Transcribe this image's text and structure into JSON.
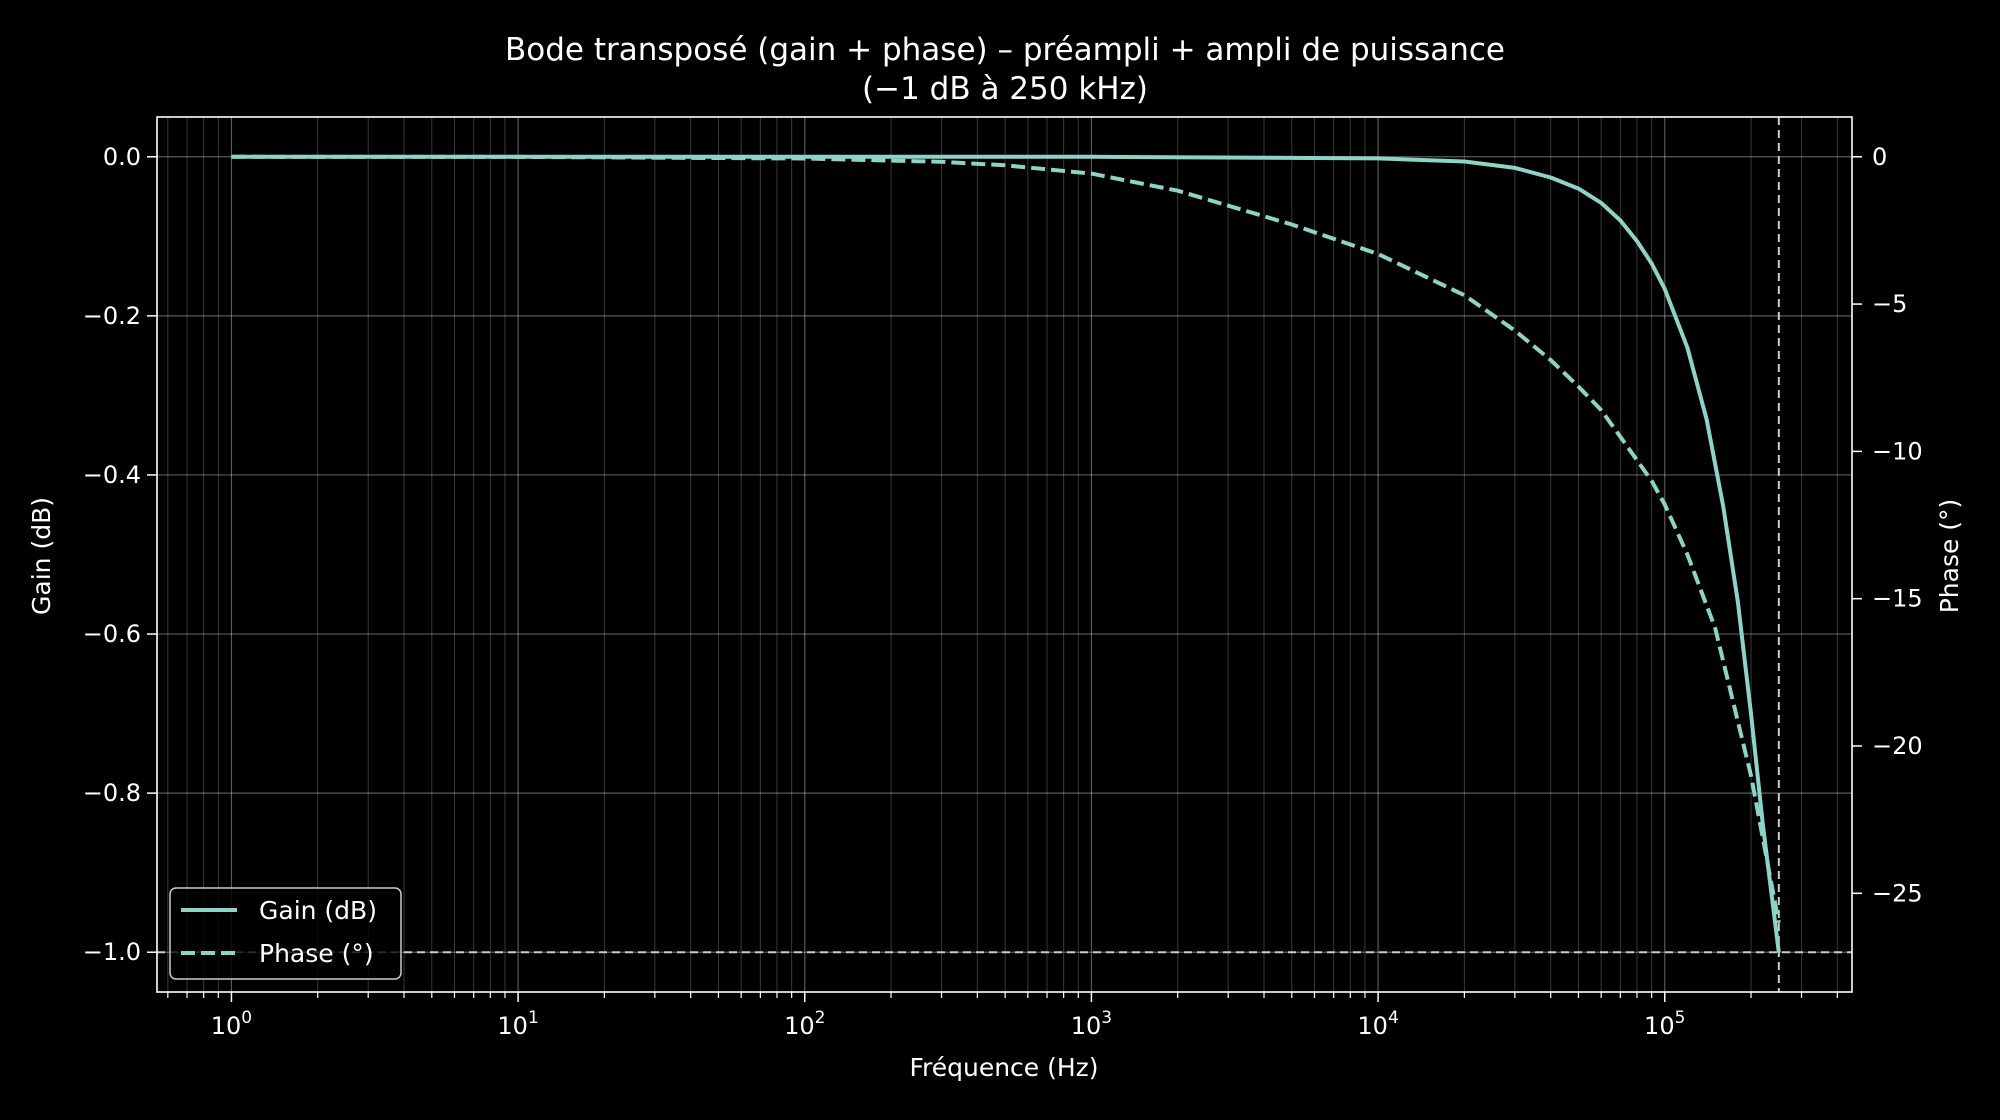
{
  "chart_data": {
    "type": "line",
    "title": "Bode transposé (gain + phase) – préampli + ampli de puissance",
    "subtitle": "(−1 dB à 250 kHz)",
    "xlabel": "Fréquence (Hz)",
    "ylabel": "Gain (dB)",
    "y2label": "Phase (°)",
    "xscale": "log",
    "xlim": [
      0.55,
      450000
    ],
    "ylim": [
      -1.05,
      0.05
    ],
    "y2lim": [
      -28.35,
      1.35
    ],
    "x_ticks": [
      {
        "value": 1,
        "base": "10",
        "exp": "0"
      },
      {
        "value": 10,
        "base": "10",
        "exp": "1"
      },
      {
        "value": 100,
        "base": "10",
        "exp": "2"
      },
      {
        "value": 1000,
        "base": "10",
        "exp": "3"
      },
      {
        "value": 10000,
        "base": "10",
        "exp": "4"
      },
      {
        "value": 100000,
        "base": "10",
        "exp": "5"
      }
    ],
    "y_ticks": [
      {
        "value": 0.0,
        "label": "0.0"
      },
      {
        "value": -0.2,
        "label": "−0.2"
      },
      {
        "value": -0.4,
        "label": "−0.4"
      },
      {
        "value": -0.6,
        "label": "−0.6"
      },
      {
        "value": -0.8,
        "label": "−0.8"
      },
      {
        "value": -1.0,
        "label": "−1.0"
      }
    ],
    "y2_ticks": [
      {
        "value": 0,
        "label": "0"
      },
      {
        "value": -5,
        "label": "−5"
      },
      {
        "value": -10,
        "label": "−10"
      },
      {
        "value": -15,
        "label": "−15"
      },
      {
        "value": -20,
        "label": "−20"
      },
      {
        "value": -25,
        "label": "−25"
      }
    ],
    "grid": true,
    "legend_position": "bottom-left",
    "reference_lines": {
      "x": 250000,
      "y": -1.0
    },
    "series": [
      {
        "name": "Gain (dB)",
        "axis": "left",
        "style": "solid",
        "color": "#8dd3c7",
        "x": [
          1,
          10,
          100,
          1000,
          10000,
          20000,
          30000,
          40000,
          50000,
          60000,
          70000,
          80000,
          90000,
          100000,
          120000,
          140000,
          160000,
          180000,
          200000,
          220000,
          250000
        ],
        "y": [
          0.0,
          0.0,
          0.0,
          0.0,
          -0.002,
          -0.006,
          -0.014,
          -0.026,
          -0.04,
          -0.058,
          -0.08,
          -0.106,
          -0.134,
          -0.166,
          -0.24,
          -0.33,
          -0.44,
          -0.56,
          -0.7,
          -0.84,
          -1.0
        ]
      },
      {
        "name": "Phase (°)",
        "axis": "right",
        "style": "dashed",
        "color": "#8dd3c7",
        "x": [
          1,
          10,
          100,
          300,
          500,
          1000,
          2000,
          5000,
          10000,
          20000,
          30000,
          40000,
          50000,
          60000,
          70000,
          80000,
          90000,
          100000,
          120000,
          150000,
          200000,
          250000
        ],
        "y": [
          0.0,
          -0.006,
          -0.06,
          -0.17,
          -0.29,
          -0.57,
          -1.15,
          -2.3,
          -3.3,
          -4.7,
          -5.9,
          -6.9,
          -7.8,
          -8.6,
          -9.5,
          -10.3,
          -11.0,
          -11.8,
          -13.5,
          -16.0,
          -21.0,
          -26.0
        ]
      }
    ]
  }
}
